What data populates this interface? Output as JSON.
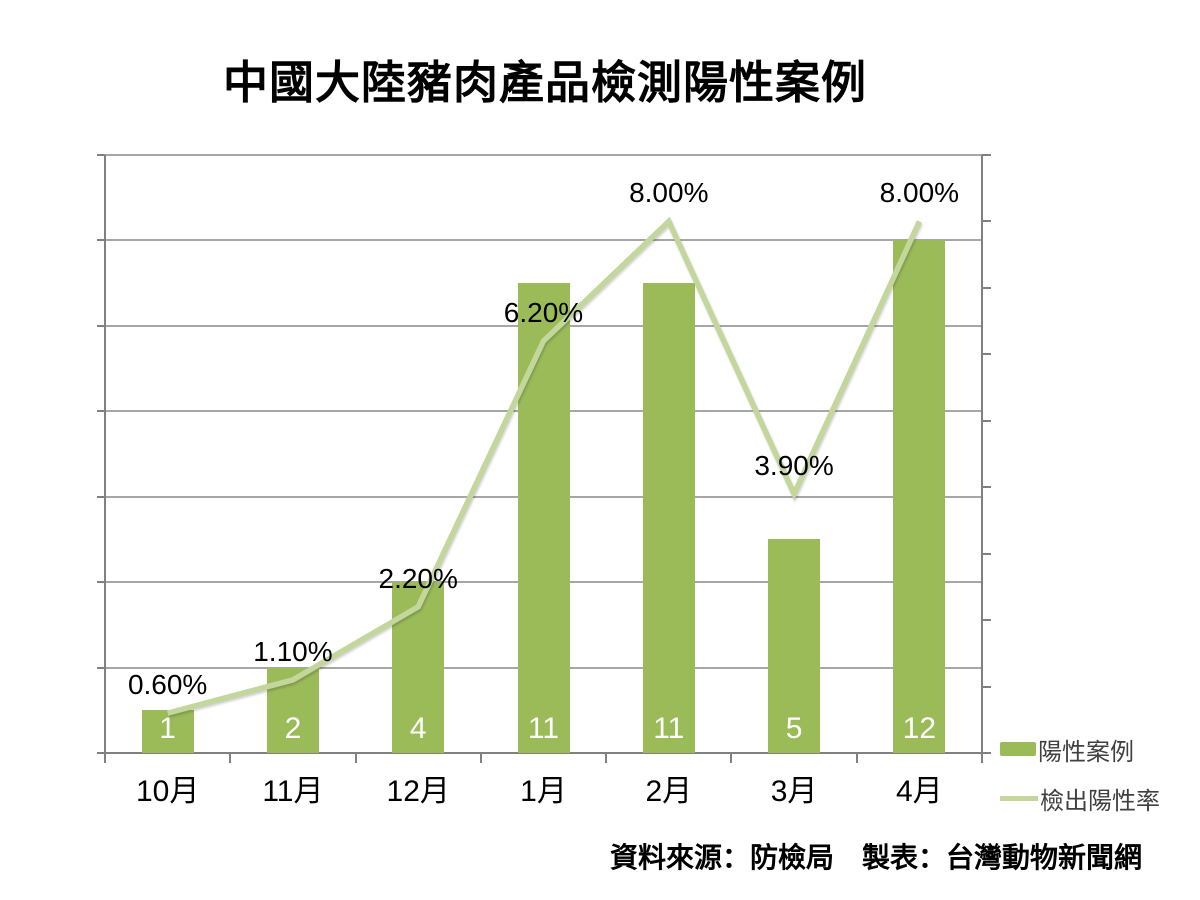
{
  "source_note": "資料來源：防檢局　製表：台灣動物新聞網",
  "legend": {
    "items": [
      {
        "label": "陽性案例",
        "swatch": "bar"
      },
      {
        "label": "檢出陽性率",
        "swatch": "line"
      }
    ]
  },
  "colors": {
    "bar": "#9BBB59",
    "line": "#C3D69B",
    "gridline": "#A6A6A6",
    "axis": "#808080",
    "title": "#000000",
    "bar_label": "#FFFFFF",
    "rate_label": "#000000",
    "axis_label": "#000000",
    "legend_text": "#404040",
    "background": "#FFFFFF"
  },
  "chart_data": {
    "type": "combo-bar-line",
    "title": "中國大陸豬肉產品檢測陽性案例",
    "categories": [
      "10月",
      "11月",
      "12月",
      "1月",
      "2月",
      "3月",
      "4月"
    ],
    "series": [
      {
        "name": "陽性案例",
        "type": "bar",
        "axis": "left",
        "color": "#9BBB59",
        "values": [
          1,
          2,
          4,
          11,
          11,
          5,
          12
        ],
        "data_labels": [
          "1",
          "2",
          "4",
          "11",
          "11",
          "5",
          "12"
        ],
        "data_label_position": "inside-base",
        "data_label_color": "#FFFFFF"
      },
      {
        "name": "檢出陽性率",
        "type": "line",
        "axis": "right",
        "color": "#C3D69B",
        "values": [
          0.6,
          1.1,
          2.2,
          6.2,
          8.0,
          3.9,
          8.0
        ],
        "data_labels": [
          "0.60%",
          "1.10%",
          "2.20%",
          "6.20%",
          "8.00%",
          "3.90%",
          "8.00%"
        ],
        "data_label_position": "above",
        "data_label_color": "#000000"
      }
    ],
    "left_axis": {
      "min": 0,
      "max": 14,
      "grid_step": 2,
      "tick_labels_visible": false
    },
    "right_axis": {
      "min": 0,
      "max": 9,
      "tick_step": 1,
      "tick_labels_visible": false
    },
    "grid": true,
    "legend_position": "right-bottom"
  }
}
